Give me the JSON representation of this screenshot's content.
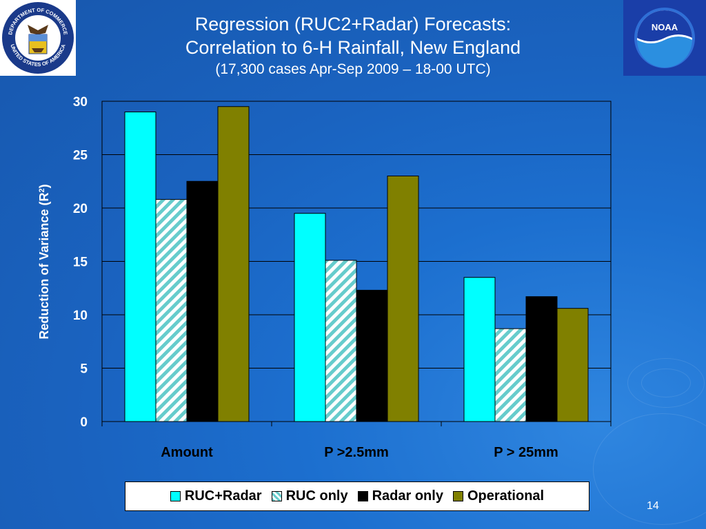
{
  "title": {
    "line1": "Regression (RUC2+Radar) Forecasts:",
    "line2": "Correlation to 6-H Rainfall, New England",
    "line3": "(17,300 cases Apr-Sep 2009 – 18-00 UTC)"
  },
  "logos": {
    "left": "department-of-commerce-seal",
    "right": "noaa-logo",
    "left_text": "DEPARTMENT OF COMMERCE UNITED STATES OF AMERICA",
    "right_text": "NOAA"
  },
  "colors": {
    "ruc_radar": "#00ffff",
    "ruc_only_stripe": "#66cccc",
    "radar_only": "#000000",
    "operational": "#808000",
    "background": "#1c6fcf"
  },
  "chart_data": {
    "type": "bar",
    "title": "",
    "xlabel": "",
    "ylabel_main": "Reduction of Variance (R",
    "ylabel_sup": "2",
    "ylabel_end": ")",
    "ylim": [
      0,
      30
    ],
    "yticks": [
      0,
      5,
      10,
      15,
      20,
      25,
      30
    ],
    "grid": true,
    "legend_position": "bottom",
    "categories": [
      "Amount",
      "P >2.5mm",
      "P > 25mm"
    ],
    "series": [
      {
        "name": "RUC+Radar",
        "values": [
          29.0,
          19.5,
          13.5
        ]
      },
      {
        "name": "RUC only",
        "values": [
          20.8,
          15.1,
          8.7
        ]
      },
      {
        "name": "Radar only",
        "values": [
          22.5,
          12.3,
          11.7
        ]
      },
      {
        "name": "Operational",
        "values": [
          29.5,
          23.0,
          10.6
        ]
      }
    ]
  },
  "page_number": "14"
}
